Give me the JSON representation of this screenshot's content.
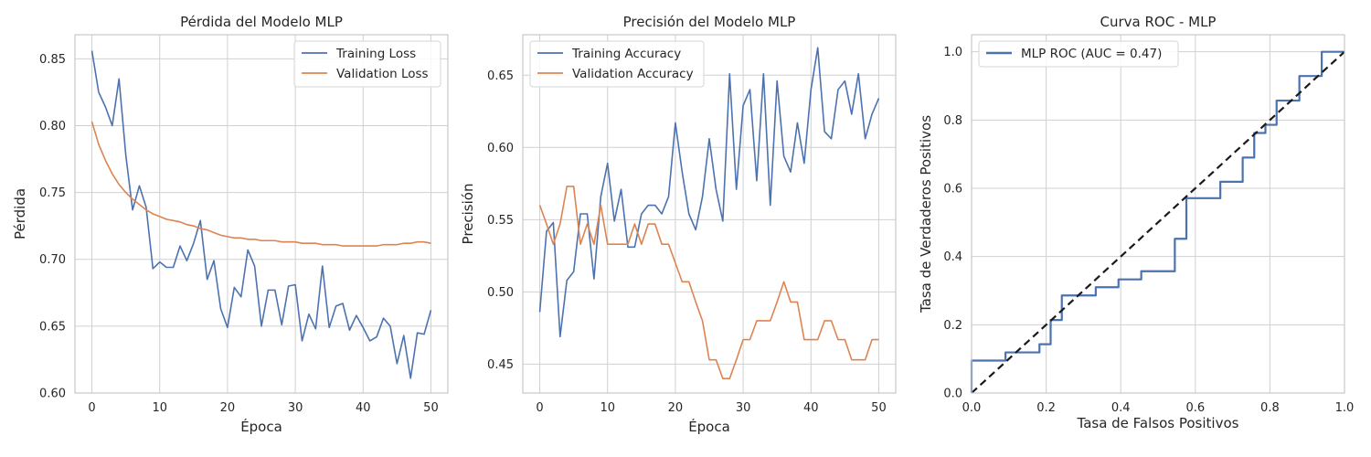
{
  "chart_data": [
    {
      "type": "line",
      "title": "Pérdida del Modelo MLP",
      "xlabel": "Época",
      "ylabel": "Pérdida",
      "xlim": [
        -2.5,
        52.5
      ],
      "ylim": [
        0.6,
        0.868
      ],
      "xticks": [
        0,
        10,
        20,
        30,
        40,
        50
      ],
      "xtick_labels": [
        "0",
        "10",
        "20",
        "30",
        "40",
        "50"
      ],
      "yticks": [
        0.6,
        0.65,
        0.7,
        0.75,
        0.8,
        0.85
      ],
      "ytick_labels": [
        "0.60",
        "0.65",
        "0.70",
        "0.75",
        "0.80",
        "0.85"
      ],
      "grid": true,
      "legend": "top-right",
      "x": [
        0,
        1,
        2,
        3,
        4,
        5,
        6,
        7,
        8,
        9,
        10,
        11,
        12,
        13,
        14,
        15,
        16,
        17,
        18,
        19,
        20,
        21,
        22,
        23,
        24,
        25,
        26,
        27,
        28,
        29,
        30,
        31,
        32,
        33,
        34,
        35,
        36,
        37,
        38,
        39,
        40,
        41,
        42,
        43,
        44,
        45,
        46,
        47,
        48,
        49,
        50
      ],
      "series": [
        {
          "name": "Training Loss",
          "color": "#4c72b0",
          "values": [
            0.856,
            0.825,
            0.814,
            0.8,
            0.835,
            0.778,
            0.737,
            0.755,
            0.739,
            0.693,
            0.698,
            0.694,
            0.694,
            0.71,
            0.699,
            0.712,
            0.729,
            0.685,
            0.699,
            0.663,
            0.649,
            0.679,
            0.672,
            0.707,
            0.695,
            0.65,
            0.677,
            0.677,
            0.651,
            0.68,
            0.681,
            0.639,
            0.659,
            0.648,
            0.695,
            0.649,
            0.665,
            0.667,
            0.647,
            0.658,
            0.649,
            0.639,
            0.642,
            0.656,
            0.65,
            0.622,
            0.643,
            0.611,
            0.645,
            0.644,
            0.662
          ]
        },
        {
          "name": "Validation Loss",
          "color": "#dd8452",
          "values": [
            0.803,
            0.786,
            0.774,
            0.764,
            0.756,
            0.75,
            0.745,
            0.741,
            0.737,
            0.734,
            0.732,
            0.73,
            0.729,
            0.728,
            0.726,
            0.725,
            0.723,
            0.722,
            0.72,
            0.718,
            0.717,
            0.716,
            0.716,
            0.715,
            0.715,
            0.714,
            0.714,
            0.714,
            0.713,
            0.713,
            0.713,
            0.712,
            0.712,
            0.712,
            0.711,
            0.711,
            0.711,
            0.71,
            0.71,
            0.71,
            0.71,
            0.71,
            0.71,
            0.711,
            0.711,
            0.711,
            0.712,
            0.712,
            0.713,
            0.713,
            0.712
          ]
        }
      ]
    },
    {
      "type": "line",
      "title": "Precisión del Modelo MLP",
      "xlabel": "Época",
      "ylabel": "Precisión",
      "xlim": [
        -2.5,
        52.5
      ],
      "ylim": [
        0.43,
        0.678
      ],
      "xticks": [
        0,
        10,
        20,
        30,
        40,
        50
      ],
      "xtick_labels": [
        "0",
        "10",
        "20",
        "30",
        "40",
        "50"
      ],
      "yticks": [
        0.45,
        0.5,
        0.55,
        0.6,
        0.65
      ],
      "ytick_labels": [
        "0.45",
        "0.50",
        "0.55",
        "0.60",
        "0.65"
      ],
      "grid": true,
      "legend": "top-left",
      "x": [
        0,
        1,
        2,
        3,
        4,
        5,
        6,
        7,
        8,
        9,
        10,
        11,
        12,
        13,
        14,
        15,
        16,
        17,
        18,
        19,
        20,
        21,
        22,
        23,
        24,
        25,
        26,
        27,
        28,
        29,
        30,
        31,
        32,
        33,
        34,
        35,
        36,
        37,
        38,
        39,
        40,
        41,
        42,
        43,
        44,
        45,
        46,
        47,
        48,
        49,
        50
      ],
      "series": [
        {
          "name": "Training Accuracy",
          "color": "#4c72b0",
          "values": [
            0.486,
            0.542,
            0.548,
            0.469,
            0.508,
            0.514,
            0.554,
            0.554,
            0.509,
            0.566,
            0.589,
            0.549,
            0.571,
            0.531,
            0.531,
            0.554,
            0.56,
            0.56,
            0.554,
            0.566,
            0.617,
            0.583,
            0.554,
            0.543,
            0.566,
            0.606,
            0.571,
            0.549,
            0.651,
            0.571,
            0.629,
            0.64,
            0.577,
            0.651,
            0.56,
            0.646,
            0.594,
            0.583,
            0.617,
            0.589,
            0.64,
            0.669,
            0.611,
            0.606,
            0.64,
            0.646,
            0.623,
            0.651,
            0.606,
            0.623,
            0.634
          ]
        },
        {
          "name": "Validation Accuracy",
          "color": "#dd8452",
          "values": [
            0.56,
            0.547,
            0.533,
            0.547,
            0.573,
            0.573,
            0.533,
            0.547,
            0.533,
            0.56,
            0.533,
            0.533,
            0.533,
            0.533,
            0.547,
            0.533,
            0.547,
            0.547,
            0.533,
            0.533,
            0.52,
            0.507,
            0.507,
            0.493,
            0.48,
            0.453,
            0.453,
            0.44,
            0.44,
            0.453,
            0.467,
            0.467,
            0.48,
            0.48,
            0.48,
            0.493,
            0.507,
            0.493,
            0.493,
            0.467,
            0.467,
            0.467,
            0.48,
            0.48,
            0.467,
            0.467,
            0.453,
            0.453,
            0.453,
            0.467,
            0.467
          ]
        }
      ]
    },
    {
      "type": "line",
      "title": "Curva ROC - MLP",
      "xlabel": "Tasa de Falsos Positivos",
      "ylabel": "Tasa de Verdaderos Positivos",
      "xlim": [
        0,
        1
      ],
      "ylim": [
        0,
        1.05
      ],
      "xticks": [
        0,
        0.2,
        0.4,
        0.6,
        0.8,
        1.0
      ],
      "xtick_labels": [
        "0.0",
        "0.2",
        "0.4",
        "0.6",
        "0.8",
        "1.0"
      ],
      "yticks": [
        0,
        0.2,
        0.4,
        0.6,
        0.8,
        1.0
      ],
      "ytick_labels": [
        "0.0",
        "0.2",
        "0.4",
        "0.6",
        "0.8",
        "1.0"
      ],
      "grid": true,
      "legend": "top-left",
      "series": [
        {
          "name": "MLP ROC (AUC = 0.47)",
          "color": "#4c72b0",
          "step": true,
          "x": [
            0,
            0,
            0.091,
            0.091,
            0.182,
            0.182,
            0.212,
            0.212,
            0.242,
            0.242,
            0.333,
            0.333,
            0.394,
            0.394,
            0.455,
            0.455,
            0.545,
            0.545,
            0.576,
            0.576,
            0.667,
            0.667,
            0.727,
            0.727,
            0.758,
            0.758,
            0.788,
            0.788,
            0.818,
            0.818,
            0.879,
            0.879,
            0.939,
            0.939,
            1.0
          ],
          "y": [
            0,
            0.095,
            0.095,
            0.119,
            0.119,
            0.143,
            0.143,
            0.214,
            0.214,
            0.286,
            0.286,
            0.31,
            0.31,
            0.333,
            0.333,
            0.357,
            0.357,
            0.452,
            0.452,
            0.571,
            0.571,
            0.619,
            0.619,
            0.69,
            0.69,
            0.762,
            0.762,
            0.786,
            0.786,
            0.857,
            0.857,
            0.929,
            0.929,
            1.0,
            1.0
          ]
        },
        {
          "name": "",
          "color": "#1a1a1a",
          "dashed": true,
          "x": [
            0,
            1
          ],
          "y": [
            0,
            1
          ]
        }
      ]
    }
  ]
}
